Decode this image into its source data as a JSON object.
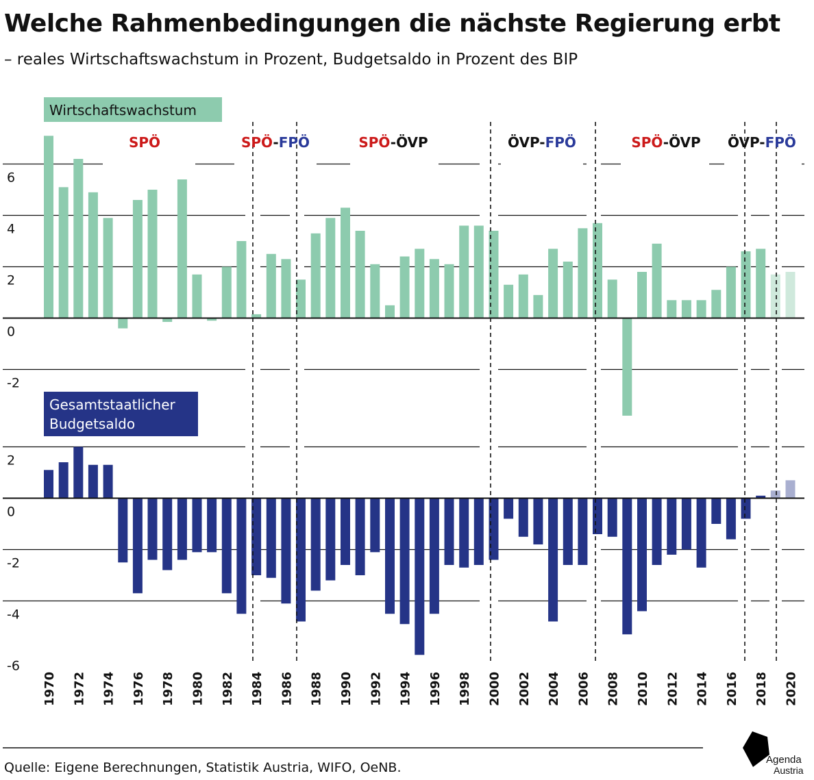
{
  "title": "Welche Rahmenbedingungen die nächste Regierung erbt",
  "subtitle": "– reales Wirtschaftswachstum in Prozent, Budgetsaldo in Prozent des BIP",
  "source": "Quelle: Eigene Berechnungen, Statistik Austria, WIFO, OeNB.",
  "logo": {
    "line1": "Agenda",
    "line2": "Austria"
  },
  "colors": {
    "growth": "#8dcbae",
    "growth_forecast": "#cfe9dc",
    "budget": "#253487",
    "budget_forecast": "#a9afd0",
    "spoe": "#cc1a1a",
    "fpoe": "#2a3a9a",
    "oevp": "#111111"
  },
  "periods": [
    {
      "parts": [
        {
          "text": "SPÖ",
          "party": "spoe"
        }
      ]
    },
    {
      "parts": [
        {
          "text": "SPÖ",
          "party": "spoe"
        },
        {
          "text": "-",
          "party": "oevp"
        },
        {
          "text": "FPÖ",
          "party": "fpoe"
        }
      ]
    },
    {
      "parts": [
        {
          "text": "SPÖ",
          "party": "spoe"
        },
        {
          "text": "-",
          "party": "oevp"
        },
        {
          "text": "ÖVP",
          "party": "oevp"
        }
      ]
    },
    {
      "parts": [
        {
          "text": "ÖVP",
          "party": "oevp"
        },
        {
          "text": "-",
          "party": "oevp"
        },
        {
          "text": "FPÖ",
          "party": "fpoe"
        }
      ]
    },
    {
      "parts": [
        {
          "text": "SPÖ",
          "party": "spoe"
        },
        {
          "text": "-",
          "party": "oevp"
        },
        {
          "text": "ÖVP",
          "party": "oevp"
        }
      ]
    },
    {
      "parts": [
        {
          "text": "ÖVP",
          "party": "oevp"
        },
        {
          "text": "-",
          "party": "oevp"
        },
        {
          "text": "FPÖ",
          "party": "fpoe"
        }
      ]
    }
  ],
  "chart_data": [
    {
      "type": "bar",
      "title": "Wirtschaftswachstum",
      "ylim": [
        -3.8,
        7.5
      ],
      "yticks": [
        6,
        4,
        2,
        0,
        -2
      ],
      "x": [
        1970,
        1971,
        1972,
        1973,
        1974,
        1975,
        1976,
        1977,
        1978,
        1979,
        1980,
        1981,
        1982,
        1983,
        1984,
        1985,
        1986,
        1987,
        1988,
        1989,
        1990,
        1991,
        1992,
        1993,
        1994,
        1995,
        1996,
        1997,
        1998,
        1999,
        2000,
        2001,
        2002,
        2003,
        2004,
        2005,
        2006,
        2007,
        2008,
        2009,
        2010,
        2011,
        2012,
        2013,
        2014,
        2015,
        2016,
        2017,
        2018,
        2019,
        2020
      ],
      "values": [
        7.1,
        5.1,
        6.2,
        4.9,
        3.9,
        -0.4,
        4.6,
        5.0,
        -0.15,
        5.4,
        1.7,
        -0.1,
        2.0,
        3.0,
        0.15,
        2.5,
        2.3,
        1.5,
        3.3,
        3.9,
        4.3,
        3.4,
        2.1,
        0.5,
        2.4,
        2.7,
        2.3,
        2.1,
        3.6,
        3.6,
        3.4,
        1.3,
        1.7,
        0.9,
        2.7,
        2.2,
        3.5,
        3.7,
        1.5,
        -3.8,
        1.8,
        2.9,
        0.7,
        0.7,
        0.7,
        1.1,
        2.0,
        2.6,
        2.7,
        1.7,
        1.8
      ],
      "forecast_from": 2019
    },
    {
      "type": "bar",
      "title": "Gesamtstaatlicher Budgetsaldo",
      "ylim": [
        -6,
        2
      ],
      "yticks": [
        2,
        0,
        -2,
        -4,
        -6
      ],
      "x": [
        1970,
        1971,
        1972,
        1973,
        1974,
        1975,
        1976,
        1977,
        1978,
        1979,
        1980,
        1981,
        1982,
        1983,
        1984,
        1985,
        1986,
        1987,
        1988,
        1989,
        1990,
        1991,
        1992,
        1993,
        1994,
        1995,
        1996,
        1997,
        1998,
        1999,
        2000,
        2001,
        2002,
        2003,
        2004,
        2005,
        2006,
        2007,
        2008,
        2009,
        2010,
        2011,
        2012,
        2013,
        2014,
        2015,
        2016,
        2017,
        2018,
        2019,
        2020
      ],
      "values": [
        1.1,
        1.4,
        2.0,
        1.3,
        1.3,
        -2.5,
        -3.7,
        -2.4,
        -2.8,
        -2.4,
        -2.1,
        -2.1,
        -3.7,
        -4.5,
        -3.0,
        -3.1,
        -4.1,
        -4.8,
        -3.6,
        -3.2,
        -2.6,
        -3.0,
        -2.1,
        -4.5,
        -4.9,
        -6.1,
        -4.5,
        -2.6,
        -2.7,
        -2.6,
        -2.4,
        -0.8,
        -1.5,
        -1.8,
        -4.8,
        -2.6,
        -2.6,
        -1.4,
        -1.5,
        -5.3,
        -4.4,
        -2.6,
        -2.2,
        -2.0,
        -2.7,
        -1.0,
        -1.6,
        -0.8,
        0.1,
        0.3,
        0.7
      ],
      "forecast_from": 2019
    }
  ],
  "x_labels": [
    "1970",
    "1972",
    "1974",
    "1976",
    "1978",
    "1980",
    "1982",
    "1984",
    "1986",
    "1988",
    "1990",
    "1992",
    "1994",
    "1996",
    "1998",
    "2000",
    "2002",
    "2004",
    "2006",
    "2008",
    "2010",
    "2012",
    "2014",
    "2016",
    "2018",
    "2020"
  ]
}
